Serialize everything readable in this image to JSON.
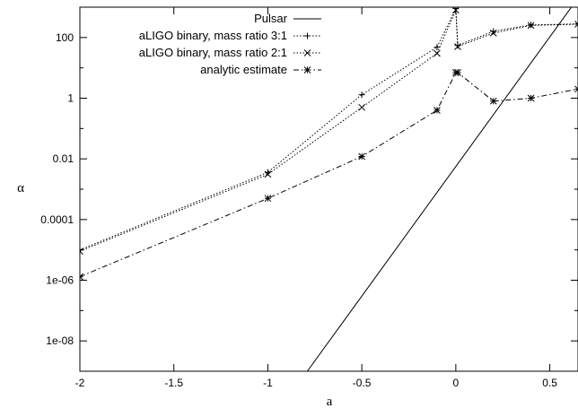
{
  "chart_data": {
    "type": "line",
    "title": "",
    "xlabel": "a",
    "ylabel": "α",
    "xlim": [
      -2,
      0.65
    ],
    "ylim": [
      1e-09,
      1000
    ],
    "yscale": "log",
    "grid": false,
    "legend_position": "top-right",
    "x_ticks": [
      -2,
      -1.5,
      -1,
      -0.5,
      0,
      0.5
    ],
    "x_tick_labels": [
      "-2",
      "-1.5",
      "-1",
      "-0.5",
      "0",
      "0.5"
    ],
    "y_ticks": [
      1e-08,
      1e-06,
      0.0001,
      0.01,
      1,
      100
    ],
    "y_tick_labels": [
      "1e-08",
      "1e-06",
      "0.0001",
      "0.01",
      "1",
      "100"
    ],
    "series": [
      {
        "name": "Pulsar",
        "style": "solid",
        "marker": "none",
        "points": [
          [
            -0.79,
            1e-09
          ],
          [
            0.65,
            2000
          ]
        ]
      },
      {
        "name": "aLIGO binary, mass ratio 3:1",
        "style": "dotted",
        "marker": "plus",
        "points": [
          [
            -2,
            1e-05
          ],
          [
            -1,
            0.0036
          ],
          [
            -0.5,
            1.3
          ],
          [
            -0.1,
            48
          ],
          [
            0,
            900
          ],
          [
            0.01,
            55
          ],
          [
            0.2,
            160
          ],
          [
            0.4,
            260
          ],
          [
            0.65,
            280
          ]
        ]
      },
      {
        "name": "aLIGO binary, mass ratio 2:1",
        "style": "dotted",
        "marker": "cross",
        "points": [
          [
            -2,
            9e-06
          ],
          [
            -1,
            0.0031
          ],
          [
            -0.5,
            0.5
          ],
          [
            -0.1,
            30
          ],
          [
            0,
            800
          ],
          [
            0.01,
            50
          ],
          [
            0.2,
            140
          ],
          [
            0.4,
            250
          ],
          [
            0.65,
            275
          ]
        ]
      },
      {
        "name": "analytic estimate",
        "style": "dashdot",
        "marker": "star",
        "points": [
          [
            -2,
            1.3e-06
          ],
          [
            -1,
            0.0005
          ],
          [
            -0.5,
            0.012
          ],
          [
            -0.1,
            0.4
          ],
          [
            0,
            7
          ],
          [
            0.01,
            7
          ],
          [
            0.2,
            0.8
          ],
          [
            0.4,
            1
          ],
          [
            0.65,
            2
          ]
        ]
      }
    ]
  }
}
